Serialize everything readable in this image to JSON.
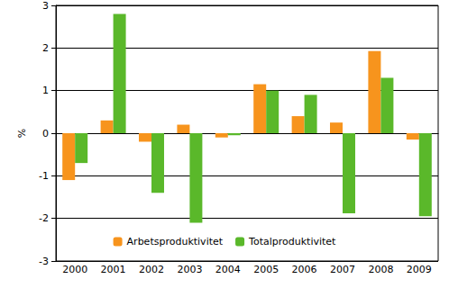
{
  "chart_data": {
    "type": "bar",
    "categories": [
      "2000",
      "2001",
      "2002",
      "2003",
      "2004",
      "2005",
      "2006",
      "2007",
      "2008",
      "2009"
    ],
    "series": [
      {
        "name": "Arbetsproduktivitet",
        "color": "#f7941d",
        "values": [
          -1.1,
          0.3,
          -0.2,
          0.2,
          -0.1,
          1.15,
          0.4,
          0.25,
          1.93,
          -0.15
        ]
      },
      {
        "name": "Totalproduktivitet",
        "color": "#5ab82a",
        "values": [
          -0.7,
          2.8,
          -1.4,
          -2.1,
          -0.05,
          1.0,
          0.9,
          -1.88,
          1.3,
          -1.95
        ]
      }
    ],
    "y_label": "%",
    "ylim": [
      -3,
      3
    ],
    "yticks": [
      -3,
      -2,
      -1,
      0,
      1,
      2,
      3
    ],
    "grid": true,
    "legend": "bottom"
  }
}
